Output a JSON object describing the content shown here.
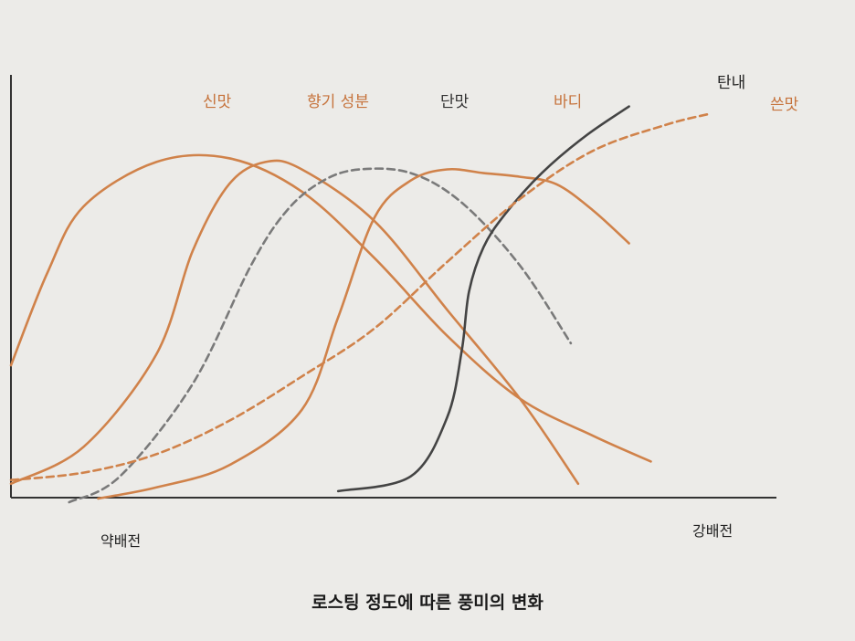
{
  "caption": "로스팅 정도에 따른 풍미의 변화",
  "chart_data": {
    "type": "line",
    "title": "로스팅 정도에 따른 풍미의 변화",
    "xlabel": "",
    "ylabel": "",
    "x_tick_labels": [
      "약배전",
      "강배전"
    ],
    "x_range": [
      0,
      100
    ],
    "y_range": [
      0,
      100
    ],
    "grid": false,
    "legend": "inline labels",
    "series": [
      {
        "name": "신맛",
        "color": "#d0824a",
        "style": "solid",
        "x": [
          0,
          5,
          10,
          20,
          30,
          40,
          50,
          60,
          70,
          80,
          88
        ],
        "y": [
          37,
          62,
          80,
          92,
          93,
          84,
          66,
          45,
          28,
          18,
          11
        ]
      },
      {
        "name": "향기 성분",
        "color": "#d0824a",
        "style": "solid",
        "x": [
          0,
          10,
          20,
          25,
          30,
          35,
          40,
          50,
          60,
          70,
          78
        ],
        "y": [
          5,
          15,
          40,
          68,
          86,
          92,
          90,
          76,
          52,
          28,
          5
        ]
      },
      {
        "name": "단맛",
        "color": "#7a7a7a",
        "style": "dashed",
        "x": [
          8,
          15,
          25,
          33,
          38,
          43,
          48,
          55,
          62,
          70,
          77
        ],
        "y": [
          0,
          7,
          32,
          64,
          79,
          87,
          90,
          89,
          81,
          64,
          43
        ]
      },
      {
        "name": "바디",
        "color": "#d0824a",
        "style": "solid",
        "x": [
          12,
          20,
          30,
          40,
          45,
          50,
          55,
          60,
          65,
          70,
          75,
          80,
          85
        ],
        "y": [
          1,
          4,
          10,
          25,
          50,
          77,
          87,
          90,
          89,
          88,
          86,
          79,
          70
        ]
      },
      {
        "name": "탄내",
        "color": "#444444",
        "style": "solid",
        "x": [
          45,
          55,
          60,
          62,
          63,
          65,
          68,
          73,
          79,
          85
        ],
        "y": [
          3,
          7,
          23,
          41,
          57,
          69,
          78,
          89,
          99,
          107
        ]
      },
      {
        "name": "쓴맛",
        "color": "#d0824a",
        "style": "dashed",
        "x": [
          0,
          10,
          20,
          30,
          40,
          50,
          60,
          70,
          80,
          90,
          96
        ],
        "y": [
          6,
          8,
          13,
          22,
          34,
          47,
          65,
          82,
          95,
          102,
          105
        ]
      }
    ]
  }
}
